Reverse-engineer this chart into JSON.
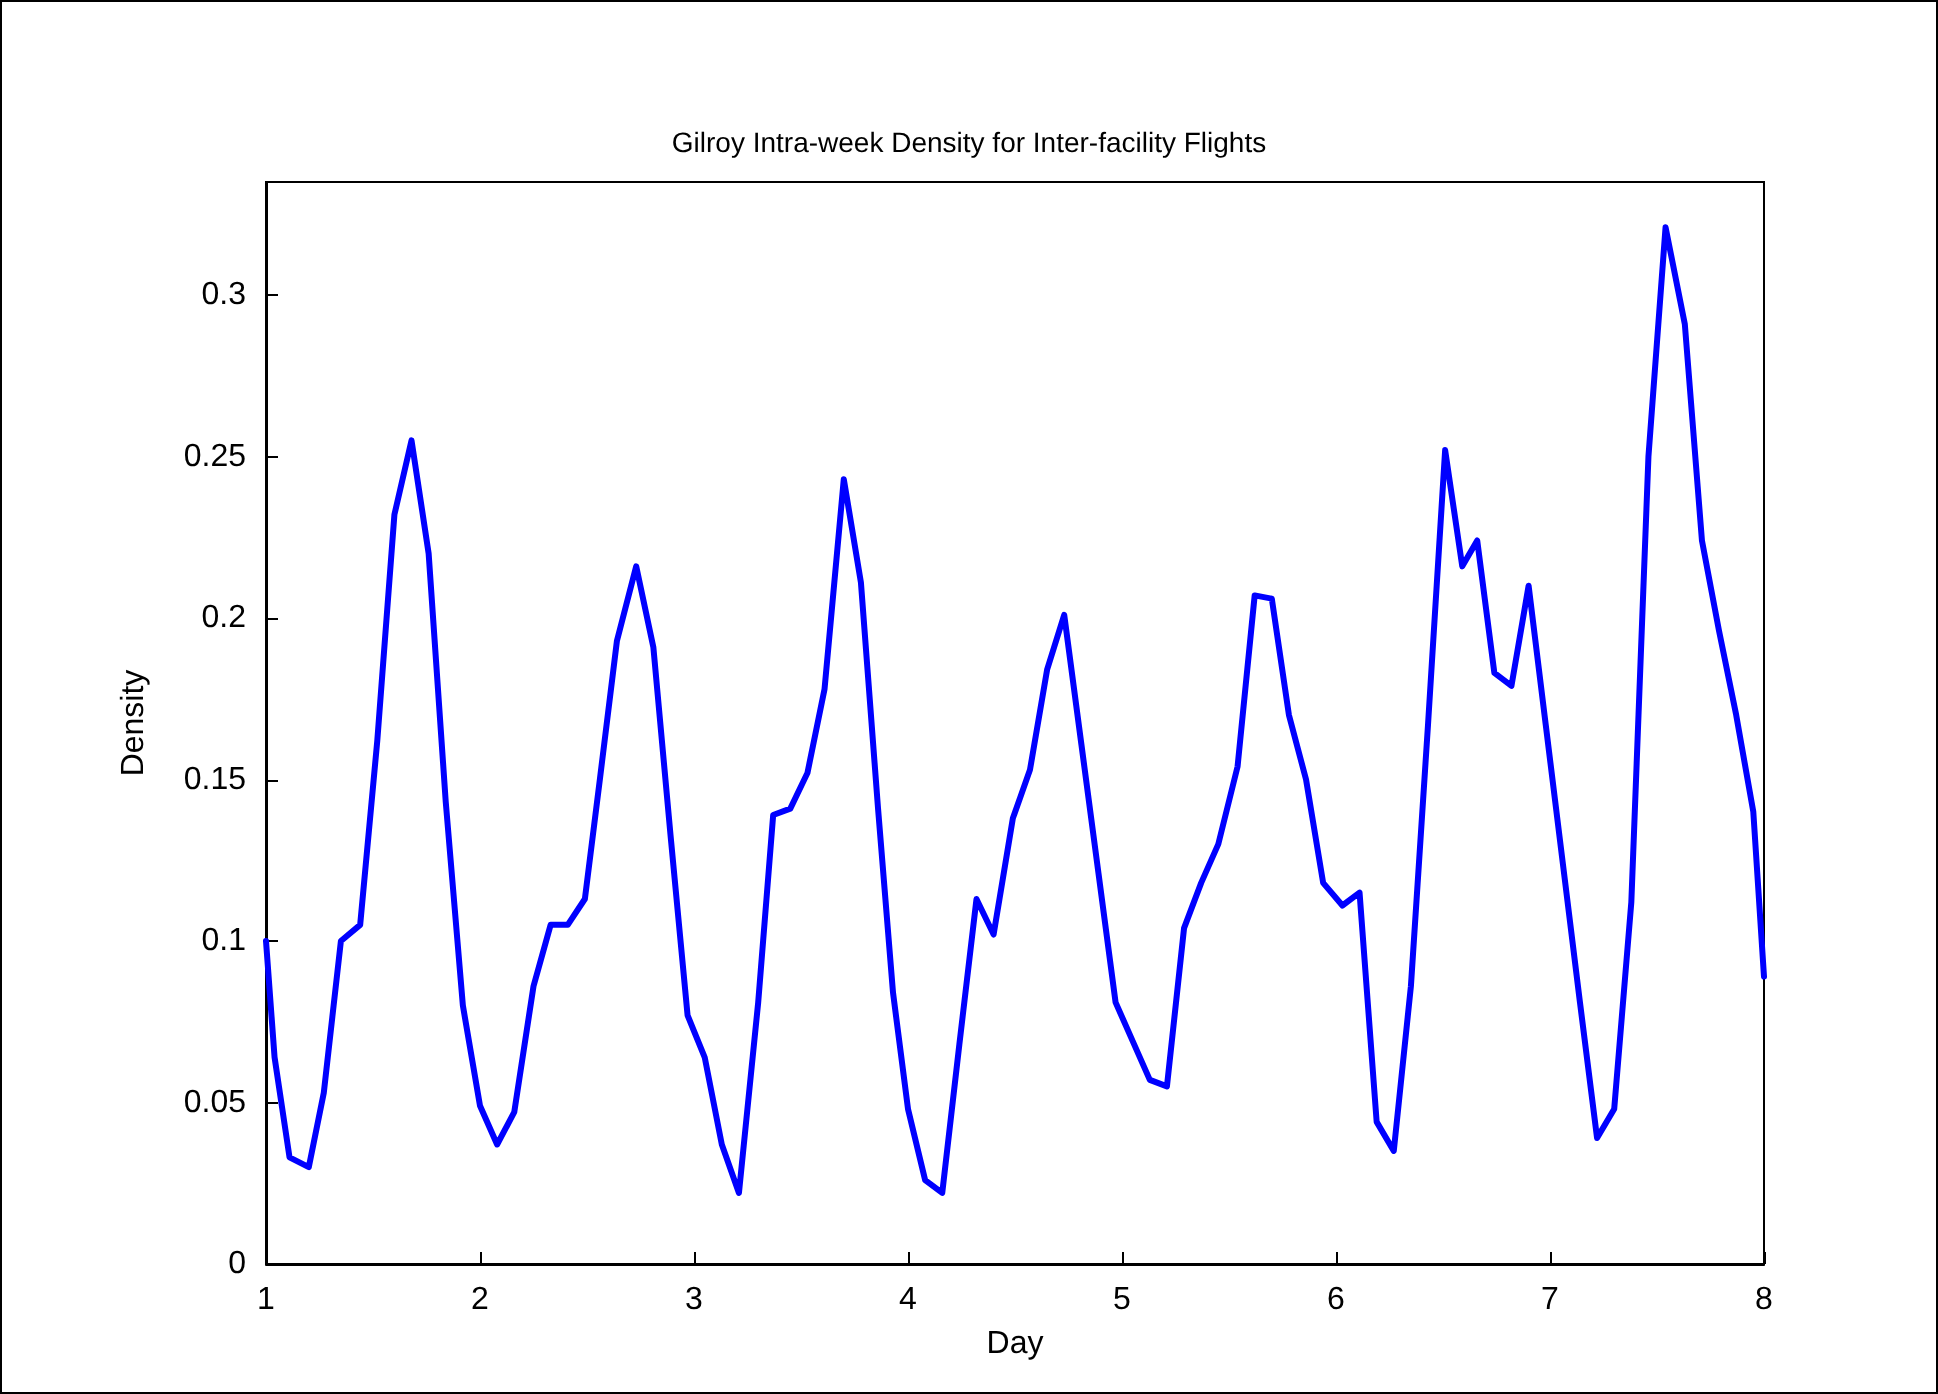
{
  "chart_data": {
    "type": "line",
    "title": "Gilroy Intra-week Density for Inter-facility Flights",
    "xlabel": "Day",
    "ylabel": "Density",
    "x": [
      1.0,
      1.04,
      1.11,
      1.2,
      1.27,
      1.35,
      1.44,
      1.52,
      1.6,
      1.68,
      1.76,
      1.84,
      1.92,
      2.0,
      2.08,
      2.16,
      2.25,
      2.33,
      2.41,
      2.49,
      2.56,
      2.64,
      2.73,
      2.81,
      2.89,
      2.97,
      3.05,
      3.13,
      3.21,
      3.3,
      3.37,
      3.45,
      3.53,
      3.61,
      3.7,
      3.78,
      3.86,
      3.93,
      4.0,
      4.08,
      4.16,
      4.24,
      4.32,
      4.4,
      4.49,
      4.57,
      4.65,
      4.73,
      4.81,
      4.89,
      4.97,
      5.05,
      5.13,
      5.21,
      5.29,
      5.37,
      5.45,
      5.54,
      5.62,
      5.7,
      5.78,
      5.86,
      5.94,
      6.03,
      6.11,
      6.19,
      6.27,
      6.35,
      6.43,
      6.51,
      6.59,
      6.66,
      6.74,
      6.82,
      6.9,
      6.98,
      7.06,
      7.14,
      7.22,
      7.3,
      7.38,
      7.46,
      7.54,
      7.63,
      7.71,
      7.79,
      7.87,
      7.95,
      8.0
    ],
    "series": [
      {
        "color": "#0000ff",
        "values": [
          0.1,
          0.064,
          0.033,
          0.03,
          0.053,
          0.1,
          0.105,
          0.162,
          0.232,
          0.255,
          0.22,
          0.143,
          0.08,
          0.049,
          0.037,
          0.047,
          0.086,
          0.105,
          0.105,
          0.113,
          0.15,
          0.193,
          0.216,
          0.191,
          0.133,
          0.077,
          0.064,
          0.037,
          0.022,
          0.081,
          0.139,
          0.141,
          0.152,
          0.178,
          0.243,
          0.211,
          0.141,
          0.084,
          0.048,
          0.026,
          0.022,
          0.068,
          0.113,
          0.102,
          0.138,
          0.153,
          0.184,
          0.201,
          0.161,
          0.121,
          0.081,
          0.069,
          0.057,
          0.055,
          0.104,
          0.118,
          0.13,
          0.154,
          0.207,
          0.206,
          0.17,
          0.15,
          0.118,
          0.111,
          0.115,
          0.044,
          0.035,
          0.086,
          0.167,
          0.252,
          0.216,
          0.224,
          0.183,
          0.179,
          0.21,
          0.167,
          0.124,
          0.081,
          0.039,
          0.048,
          0.112,
          0.25,
          0.321,
          0.291,
          0.224,
          0.196,
          0.17,
          0.14,
          0.089
        ]
      }
    ],
    "xlim": [
      1,
      8
    ],
    "xticks": [
      1,
      2,
      3,
      4,
      5,
      6,
      7,
      8
    ],
    "ylim": [
      0,
      0.335
    ],
    "yticks": [
      0,
      0.05,
      0.1,
      0.15,
      0.2,
      0.25,
      0.3
    ],
    "grid": false,
    "marker": "none",
    "line_style": "solid"
  }
}
